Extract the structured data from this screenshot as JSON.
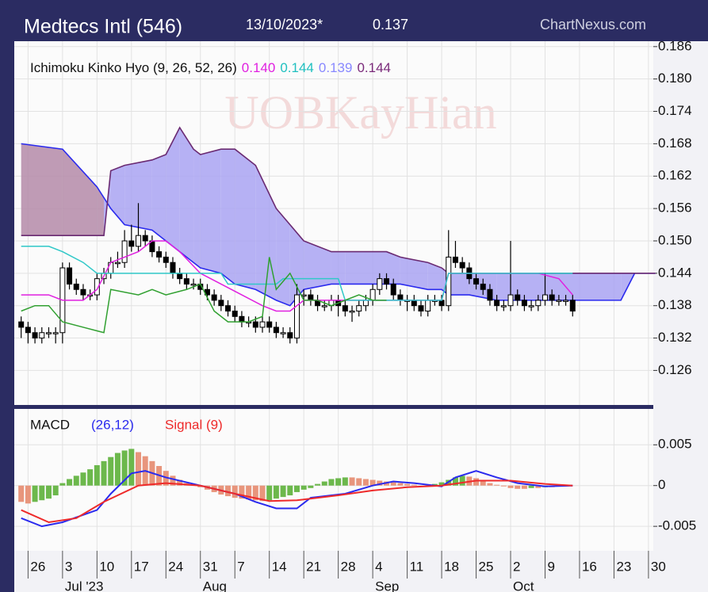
{
  "header": {
    "title": "Medtecs Intl (546)",
    "date": "13/10/2023*",
    "last": "0.137",
    "source": "ChartNexus.com"
  },
  "watermark": "UOBKayHian",
  "chart_data": [
    {
      "type": "candlestick",
      "title": "Ichimoku Kinko Hyo (9, 26, 52, 26)",
      "indicator_labels": [
        {
          "label": "0.140",
          "color": "#e020e0"
        },
        {
          "label": "0.144",
          "color": "#20c0c0"
        },
        {
          "label": "0.139",
          "color": "#8888ff"
        },
        {
          "label": "0.144",
          "color": "#7a2a7a"
        }
      ],
      "xlim": [
        -2,
        90.7
      ],
      "ylim": [
        0.1196,
        0.187
      ],
      "yticks": [
        0.186,
        {
          "value": 0.18,
          "label": "0.180"
        },
        0.174,
        0.168,
        0.162,
        0.156,
        {
          "value": 0.15,
          "label": "0.150"
        },
        0.144,
        0.138,
        0.132,
        0.126
      ],
      "xticks": [
        0,
        5,
        10,
        15,
        20,
        25,
        30,
        35,
        40,
        45,
        50,
        55,
        60,
        65,
        70,
        75,
        80,
        85,
        90
      ],
      "grid": true,
      "x": [
        -1,
        0,
        1,
        2,
        3,
        4,
        5,
        6,
        7,
        8,
        9,
        10,
        11,
        12,
        13,
        14,
        15,
        16,
        17,
        18,
        19,
        20,
        21,
        22,
        23,
        24,
        25,
        26,
        27,
        28,
        29,
        30,
        31,
        32,
        33,
        34,
        35,
        36,
        37,
        38,
        39,
        40,
        41,
        42,
        43,
        44,
        45,
        46,
        47,
        48,
        49,
        50,
        51,
        52,
        53,
        54,
        55,
        56,
        57,
        58,
        59,
        60,
        61,
        62,
        63,
        64,
        65,
        66,
        67,
        68,
        69,
        70,
        71,
        72,
        73,
        74,
        75,
        76,
        77,
        78,
        79
      ],
      "candles": [
        [
          0.135,
          0.136,
          0.132,
          0.134
        ],
        [
          0.134,
          0.135,
          0.131,
          0.133
        ],
        [
          0.133,
          0.134,
          0.131,
          0.132
        ],
        [
          0.132,
          0.134,
          0.131,
          0.133
        ],
        [
          0.133,
          0.134,
          0.132,
          0.133
        ],
        [
          0.133,
          0.134,
          0.131,
          0.133
        ],
        [
          0.133,
          0.146,
          0.131,
          0.145
        ],
        [
          0.145,
          0.146,
          0.141,
          0.142
        ],
        [
          0.142,
          0.143,
          0.14,
          0.141
        ],
        [
          0.141,
          0.142,
          0.139,
          0.14
        ],
        [
          0.14,
          0.141,
          0.139,
          0.14
        ],
        [
          0.14,
          0.144,
          0.139,
          0.143
        ],
        [
          0.143,
          0.145,
          0.142,
          0.144
        ],
        [
          0.144,
          0.147,
          0.143,
          0.146
        ],
        [
          0.146,
          0.148,
          0.145,
          0.146
        ],
        [
          0.146,
          0.152,
          0.145,
          0.15
        ],
        [
          0.15,
          0.153,
          0.148,
          0.149
        ],
        [
          0.149,
          0.157,
          0.148,
          0.151
        ],
        [
          0.151,
          0.152,
          0.149,
          0.15
        ],
        [
          0.15,
          0.151,
          0.147,
          0.148
        ],
        [
          0.148,
          0.149,
          0.146,
          0.147
        ],
        [
          0.147,
          0.148,
          0.145,
          0.146
        ],
        [
          0.146,
          0.147,
          0.143,
          0.144
        ],
        [
          0.144,
          0.145,
          0.142,
          0.143
        ],
        [
          0.143,
          0.144,
          0.141,
          0.142
        ],
        [
          0.142,
          0.143,
          0.141,
          0.142
        ],
        [
          0.142,
          0.143,
          0.14,
          0.141
        ],
        [
          0.141,
          0.142,
          0.139,
          0.14
        ],
        [
          0.14,
          0.141,
          0.138,
          0.139
        ],
        [
          0.139,
          0.14,
          0.137,
          0.138
        ],
        [
          0.138,
          0.139,
          0.136,
          0.137
        ],
        [
          0.137,
          0.138,
          0.135,
          0.136
        ],
        [
          0.136,
          0.137,
          0.134,
          0.135
        ],
        [
          0.135,
          0.136,
          0.134,
          0.135
        ],
        [
          0.135,
          0.136,
          0.133,
          0.134
        ],
        [
          0.134,
          0.136,
          0.133,
          0.135
        ],
        [
          0.135,
          0.136,
          0.133,
          0.134
        ],
        [
          0.134,
          0.135,
          0.132,
          0.133
        ],
        [
          0.133,
          0.134,
          0.132,
          0.133
        ],
        [
          0.133,
          0.134,
          0.131,
          0.132
        ],
        [
          0.132,
          0.142,
          0.131,
          0.14
        ],
        [
          0.14,
          0.141,
          0.138,
          0.14
        ],
        [
          0.14,
          0.141,
          0.138,
          0.139
        ],
        [
          0.139,
          0.14,
          0.137,
          0.138
        ],
        [
          0.138,
          0.139,
          0.137,
          0.138
        ],
        [
          0.138,
          0.14,
          0.137,
          0.139
        ],
        [
          0.139,
          0.14,
          0.136,
          0.138
        ],
        [
          0.138,
          0.139,
          0.136,
          0.137
        ],
        [
          0.137,
          0.138,
          0.135,
          0.137
        ],
        [
          0.137,
          0.139,
          0.136,
          0.138
        ],
        [
          0.138,
          0.14,
          0.137,
          0.139
        ],
        [
          0.139,
          0.142,
          0.138,
          0.141
        ],
        [
          0.141,
          0.144,
          0.14,
          0.143
        ],
        [
          0.143,
          0.144,
          0.141,
          0.142
        ],
        [
          0.142,
          0.143,
          0.139,
          0.14
        ],
        [
          0.14,
          0.141,
          0.138,
          0.139
        ],
        [
          0.139,
          0.14,
          0.137,
          0.139
        ],
        [
          0.139,
          0.14,
          0.137,
          0.138
        ],
        [
          0.138,
          0.139,
          0.136,
          0.137
        ],
        [
          0.137,
          0.14,
          0.136,
          0.139
        ],
        [
          0.139,
          0.14,
          0.138,
          0.139
        ],
        [
          0.139,
          0.14,
          0.137,
          0.138
        ],
        [
          0.138,
          0.152,
          0.137,
          0.147
        ],
        [
          0.147,
          0.15,
          0.145,
          0.146
        ],
        [
          0.146,
          0.147,
          0.144,
          0.145
        ],
        [
          0.145,
          0.146,
          0.142,
          0.143
        ],
        [
          0.143,
          0.144,
          0.141,
          0.142
        ],
        [
          0.142,
          0.143,
          0.14,
          0.141
        ],
        [
          0.141,
          0.142,
          0.138,
          0.139
        ],
        [
          0.139,
          0.14,
          0.137,
          0.138
        ],
        [
          0.138,
          0.139,
          0.137,
          0.138
        ],
        [
          0.138,
          0.15,
          0.137,
          0.14
        ],
        [
          0.14,
          0.141,
          0.138,
          0.139
        ],
        [
          0.139,
          0.14,
          0.137,
          0.138
        ],
        [
          0.138,
          0.139,
          0.137,
          0.138
        ],
        [
          0.138,
          0.14,
          0.137,
          0.139
        ],
        [
          0.139,
          0.144,
          0.138,
          0.14
        ],
        [
          0.14,
          0.141,
          0.138,
          0.139
        ],
        [
          0.139,
          0.14,
          0.138,
          0.139
        ],
        [
          0.139,
          0.14,
          0.138,
          0.139
        ],
        [
          0.139,
          0.14,
          0.136,
          0.137
        ]
      ],
      "cloud": {
        "x": [
          -1,
          5,
          10,
          11,
          12,
          14,
          18,
          20,
          22,
          24,
          25,
          28,
          30,
          33,
          36,
          38,
          40,
          44,
          46,
          52,
          54,
          58,
          60,
          61,
          64,
          68,
          86,
          88,
          91
        ],
        "span_a": [
          0.168,
          0.167,
          0.16,
          0.158,
          0.156,
          0.153,
          0.152,
          0.15,
          0.148,
          0.146,
          0.145,
          0.144,
          0.142,
          0.141,
          0.139,
          0.138,
          0.141,
          0.142,
          0.142,
          0.142,
          0.142,
          0.141,
          0.141,
          0.14,
          0.14,
          0.139,
          0.139,
          0.144,
          0.144
        ],
        "span_b": [
          0.151,
          0.151,
          0.151,
          0.151,
          0.163,
          0.164,
          0.165,
          0.166,
          0.171,
          0.167,
          0.166,
          0.167,
          0.167,
          0.164,
          0.156,
          0.153,
          0.15,
          0.148,
          0.148,
          0.148,
          0.147,
          0.146,
          0.145,
          0.144,
          0.144,
          0.144,
          0.144,
          0.144,
          0.144
        ],
        "color_a": "#2a2aee",
        "color_b": "#6a2a72",
        "fill_up": "#a9a3f2",
        "fill_down": "#b48aa8"
      },
      "lines": [
        {
          "color": "#e020e0",
          "x": [
            -1,
            3,
            5,
            8,
            10,
            12,
            14,
            16,
            18,
            20,
            22,
            25,
            28,
            31,
            34,
            36,
            38,
            40,
            44,
            50,
            56,
            60,
            61,
            64,
            70,
            74,
            77,
            79
          ],
          "values": [
            0.14,
            0.14,
            0.139,
            0.139,
            0.141,
            0.146,
            0.147,
            0.148,
            0.15,
            0.15,
            0.148,
            0.144,
            0.142,
            0.14,
            0.138,
            0.137,
            0.137,
            0.139,
            0.139,
            0.139,
            0.139,
            0.139,
            0.144,
            0.144,
            0.144,
            0.144,
            0.143,
            0.14
          ]
        },
        {
          "color": "#30c8c8",
          "x": [
            -1,
            3,
            5,
            8,
            10,
            12,
            20,
            28,
            29,
            36,
            37,
            45,
            46,
            60,
            61,
            79
          ],
          "values": [
            0.149,
            0.149,
            0.148,
            0.146,
            0.144,
            0.144,
            0.144,
            0.144,
            0.142,
            0.142,
            0.143,
            0.143,
            0.139,
            0.139,
            0.144,
            0.144
          ]
        },
        {
          "color": "#30a030",
          "x": [
            -1,
            1,
            3,
            5,
            8,
            11,
            12,
            16,
            18,
            20,
            23,
            25,
            27,
            29,
            32,
            34,
            35,
            36,
            38,
            40,
            42,
            44,
            46,
            48,
            50,
            52
          ],
          "values": [
            0.137,
            0.138,
            0.138,
            0.135,
            0.134,
            0.133,
            0.141,
            0.14,
            0.141,
            0.14,
            0.141,
            0.142,
            0.137,
            0.135,
            0.135,
            0.136,
            0.147,
            0.141,
            0.144,
            0.139,
            0.139,
            0.138,
            0.139,
            0.14,
            0.139,
            0.139
          ]
        }
      ]
    },
    {
      "type": "macd",
      "title": "MACD",
      "macd_label": "(26,12)",
      "signal_label": "Signal (9)",
      "xlim": [
        -2,
        90.7
      ],
      "ylim": [
        -0.008,
        0.0094
      ],
      "yticks": [
        0.005,
        0,
        -0.005
      ],
      "xticks": [
        {
          "value": 0,
          "label": "26"
        },
        {
          "value": 5,
          "label": "3"
        },
        {
          "value": 10,
          "label": "10"
        },
        {
          "value": 15,
          "label": "17"
        },
        {
          "value": 20,
          "label": "24"
        },
        {
          "value": 25,
          "label": "31"
        },
        {
          "value": 30,
          "label": "7"
        },
        {
          "value": 35,
          "label": "14"
        },
        {
          "value": 40,
          "label": "21"
        },
        {
          "value": 45,
          "label": "28"
        },
        {
          "value": 50,
          "label": "4"
        },
        {
          "value": 55,
          "label": "11"
        },
        {
          "value": 60,
          "label": "18"
        },
        {
          "value": 65,
          "label": "25"
        },
        {
          "value": 70,
          "label": "2"
        },
        {
          "value": 75,
          "label": "9"
        },
        {
          "value": 80,
          "label": "16"
        },
        {
          "value": 85,
          "label": "23"
        },
        {
          "value": 90,
          "label": "30"
        }
      ],
      "month_labels": [
        {
          "value": 5,
          "label": "Jul '23"
        },
        {
          "value": 25,
          "label": "Aug"
        },
        {
          "value": 50,
          "label": "Sep"
        },
        {
          "value": 70,
          "label": "Oct"
        }
      ],
      "grid": true,
      "x": [
        -1,
        0,
        1,
        2,
        3,
        4,
        5,
        6,
        7,
        8,
        9,
        10,
        11,
        12,
        13,
        14,
        15,
        16,
        17,
        18,
        19,
        20,
        21,
        22,
        23,
        24,
        25,
        26,
        27,
        28,
        29,
        30,
        31,
        32,
        33,
        34,
        35,
        36,
        37,
        38,
        39,
        40,
        41,
        42,
        43,
        44,
        45,
        46,
        47,
        48,
        49,
        50,
        51,
        52,
        53,
        54,
        55,
        56,
        57,
        58,
        59,
        60,
        61,
        62,
        63,
        64,
        65,
        66,
        67,
        68,
        69,
        70,
        71,
        72,
        73,
        74,
        75,
        76,
        77,
        78,
        79
      ],
      "histogram": [
        -0.002,
        -0.0022,
        -0.002,
        -0.0018,
        -0.0016,
        -0.0012,
        0.0003,
        0.0008,
        0.0012,
        0.0016,
        0.002,
        0.0025,
        0.003,
        0.0035,
        0.004,
        0.0043,
        0.0045,
        0.0041,
        0.0036,
        0.003,
        0.0024,
        0.0018,
        0.0012,
        0.0007,
        0.0003,
        0.0001,
        -0.0002,
        -0.0005,
        -0.0008,
        -0.0011,
        -0.0013,
        -0.0015,
        -0.0016,
        -0.0017,
        -0.0018,
        -0.0019,
        -0.0018,
        -0.0016,
        -0.0014,
        -0.0012,
        -0.0008,
        -0.0005,
        -0.0003,
        0.0002,
        0.0005,
        0.0008,
        0.0009,
        0.001,
        0.001,
        0.0009,
        0.0008,
        0.0007,
        0.0006,
        0.0005,
        0.0004,
        0.0003,
        0.0002,
        0.0001,
        0,
        -0.0001,
        0.0002,
        0.0004,
        0.0007,
        0.001,
        0.0012,
        0.0011,
        0.0009,
        0.0006,
        0.0003,
        0.0001,
        -0.0001,
        -0.0003,
        -0.0004,
        -0.0004,
        -0.0003,
        -0.0003,
        -0.0002,
        -0.0002,
        -0.0001,
        -0.0001,
        0
      ],
      "hist_up_color": "#6cb84c",
      "hist_down_color": "#e8957c",
      "series": [
        {
          "name": "MACD",
          "color": "#2a2aee",
          "x": [
            -1,
            2,
            5,
            10,
            12,
            15,
            17,
            20,
            25,
            30,
            33,
            36,
            39,
            41,
            46,
            50,
            53,
            56,
            60,
            62,
            65,
            68,
            71,
            75,
            79
          ],
          "values": [
            -0.004,
            -0.005,
            -0.0045,
            -0.003,
            -0.001,
            0.0015,
            0.0018,
            0.001,
            0,
            -0.001,
            -0.002,
            -0.0028,
            -0.0028,
            -0.0015,
            -0.001,
            0,
            0.0005,
            0.0003,
            -0.0001,
            0.001,
            0.0018,
            0.001,
            0.0003,
            -0.0001,
            0
          ]
        },
        {
          "name": "Signal",
          "color": "#ee2a2a",
          "x": [
            -1,
            3,
            7,
            11,
            16,
            20,
            25,
            30,
            35,
            39,
            45,
            50,
            55,
            60,
            65,
            70,
            75,
            79
          ],
          "values": [
            -0.003,
            -0.0045,
            -0.004,
            -0.002,
            0,
            0.0003,
            0,
            -0.001,
            -0.0019,
            -0.0018,
            -0.0012,
            -0.0006,
            -0.0002,
            0,
            0.0006,
            0.0006,
            0.0002,
            0
          ]
        }
      ]
    }
  ]
}
